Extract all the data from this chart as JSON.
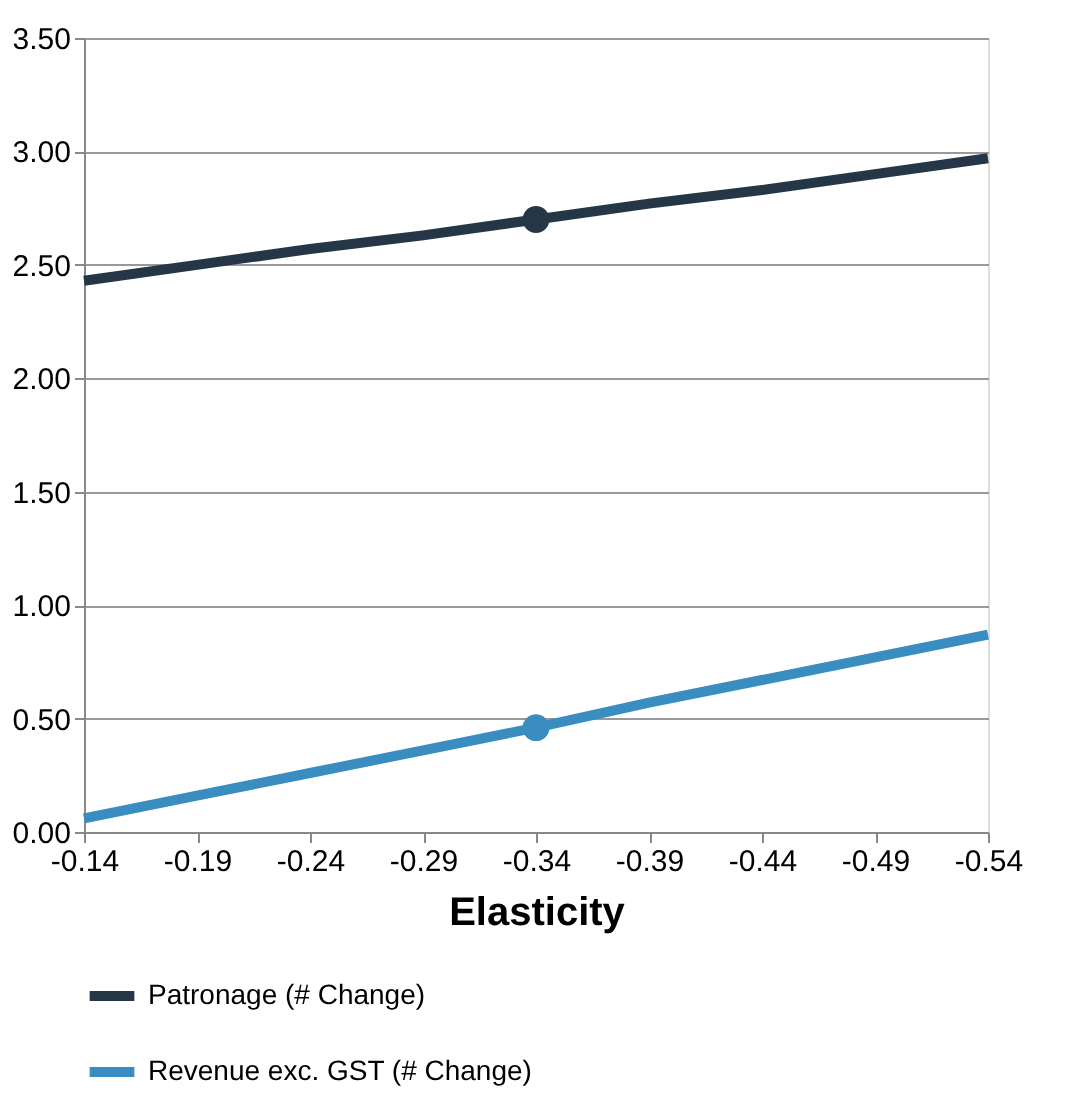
{
  "chart_data": {
    "type": "line",
    "xlabel": "Elasticity",
    "categories": [
      "-0.14",
      "-0.19",
      "-0.24",
      "-0.29",
      "-0.34",
      "-0.39",
      "-0.44",
      "-0.49",
      "-0.54"
    ],
    "series": [
      {
        "name": "Patronage (# Change)",
        "color": "#253746",
        "values": [
          2.43,
          2.5,
          2.57,
          2.63,
          2.7,
          2.77,
          2.83,
          2.9,
          2.97
        ]
      },
      {
        "name": "Revenue exc. GST (# Change)",
        "color": "#3a8dc1",
        "values": [
          0.06,
          0.16,
          0.26,
          0.36,
          0.46,
          0.57,
          0.67,
          0.77,
          0.87
        ]
      },
      {
        "type": "scatter",
        "marker": "circle",
        "color": "#253746",
        "x": [
          "-0.34"
        ],
        "values": [
          2.7
        ]
      },
      {
        "type": "scatter",
        "marker": "circle",
        "color": "#3a8dc1",
        "x": [
          "-0.34"
        ],
        "values": [
          0.46
        ]
      }
    ],
    "ylim": [
      0,
      3.5
    ],
    "yticks": [
      {
        "value": 0,
        "label": "0.00"
      },
      {
        "value": 0.5,
        "label": "0.50"
      },
      {
        "value": 1,
        "label": "1.00"
      },
      {
        "value": 1.5,
        "label": "1.50"
      },
      {
        "value": 2,
        "label": "2.00"
      },
      {
        "value": 2.5,
        "label": "2.50"
      },
      {
        "value": 3,
        "label": "3.00"
      },
      {
        "value": 3.5,
        "label": "3.50"
      }
    ],
    "grid": "y",
    "legend": "bottom",
    "marker": "none",
    "line_style": "solid"
  }
}
